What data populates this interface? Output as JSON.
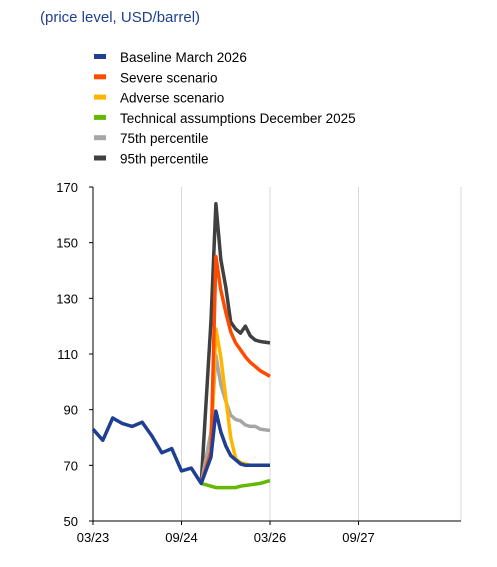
{
  "subtitle": "(price level, USD/barrel)",
  "chart_data": {
    "type": "line",
    "title": "",
    "subtitle": "(price level, USD/barrel)",
    "xlabel": "",
    "ylabel": "",
    "ylim": [
      50,
      170
    ],
    "yticks": [
      50,
      70,
      90,
      110,
      130,
      150,
      170
    ],
    "xticks": [
      "03/23",
      "09/24",
      "03/26",
      "09/27"
    ],
    "grid": "vertical lines at x ticks",
    "legend_position": "top-left",
    "series": [
      {
        "name": "Baseline March 2026",
        "color": "#1f3f93",
        "points": [
          [
            "03/23",
            83
          ],
          [
            "05/23",
            79
          ],
          [
            "07/23",
            87
          ],
          [
            "09/23",
            85
          ],
          [
            "11/23",
            84
          ],
          [
            "01/24",
            85.5
          ],
          [
            "03/24",
            80.5
          ],
          [
            "05/24",
            74.5
          ],
          [
            "07/24",
            76
          ],
          [
            "09/24",
            68
          ],
          [
            "11/24",
            69
          ],
          [
            "01/25",
            63.5
          ],
          [
            "03/25",
            73
          ],
          [
            "04/25",
            89.5
          ],
          [
            "05/25",
            82
          ],
          [
            "06/25",
            77
          ],
          [
            "07/25",
            73.5
          ],
          [
            "08/25",
            72
          ],
          [
            "09/25",
            70.5
          ],
          [
            "10/25",
            70
          ],
          [
            "11/25",
            70
          ],
          [
            "12/25",
            70
          ],
          [
            "01/26",
            70
          ],
          [
            "02/26",
            70
          ],
          [
            "03/26",
            70
          ]
        ]
      },
      {
        "name": "Severe scenario",
        "color": "#ff4b00",
        "points": [
          [
            "01/25",
            63.5
          ],
          [
            "03/25",
            75
          ],
          [
            "04/25",
            145
          ],
          [
            "05/25",
            133
          ],
          [
            "06/25",
            125
          ],
          [
            "07/25",
            118
          ],
          [
            "08/25",
            114
          ],
          [
            "09/25",
            111.5
          ],
          [
            "10/25",
            109
          ],
          [
            "11/25",
            107
          ],
          [
            "12/25",
            105.5
          ],
          [
            "01/26",
            104
          ],
          [
            "03/26",
            102
          ]
        ]
      },
      {
        "name": "Adverse scenario",
        "color": "#ffb400",
        "points": [
          [
            "01/25",
            63.5
          ],
          [
            "03/25",
            74
          ],
          [
            "04/25",
            119
          ],
          [
            "05/25",
            109
          ],
          [
            "06/25",
            94
          ],
          [
            "07/25",
            80
          ],
          [
            "08/25",
            72.5
          ],
          [
            "09/25",
            71
          ],
          [
            "10/25",
            70.5
          ],
          [
            "11/25",
            70
          ],
          [
            "12/25",
            70
          ],
          [
            "01/26",
            70
          ],
          [
            "03/26",
            70
          ]
        ]
      },
      {
        "name": "Technical assumptions December 2025",
        "color": "#65b800",
        "points": [
          [
            "01/25",
            63.5
          ],
          [
            "04/25",
            62
          ],
          [
            "06/25",
            62
          ],
          [
            "08/25",
            62
          ],
          [
            "09/25",
            62.5
          ],
          [
            "11/25",
            63
          ],
          [
            "01/26",
            63.5
          ],
          [
            "03/26",
            64.5
          ]
        ]
      },
      {
        "name": "75th percentile",
        "color": "#a6a6a6",
        "points": [
          [
            "01/25",
            63.5
          ],
          [
            "03/25",
            82
          ],
          [
            "04/25",
            109.5
          ],
          [
            "05/25",
            99
          ],
          [
            "06/25",
            93
          ],
          [
            "07/25",
            88
          ],
          [
            "08/25",
            86.5
          ],
          [
            "09/25",
            86
          ],
          [
            "10/25",
            84.5
          ],
          [
            "11/25",
            84
          ],
          [
            "12/25",
            84
          ],
          [
            "01/26",
            83
          ],
          [
            "03/26",
            82.5
          ]
        ]
      },
      {
        "name": "95th percentile",
        "color": "#404040",
        "points": [
          [
            "01/25",
            63.5
          ],
          [
            "03/25",
            122
          ],
          [
            "04/25",
            164
          ],
          [
            "05/25",
            144
          ],
          [
            "06/25",
            134
          ],
          [
            "07/25",
            121.5
          ],
          [
            "08/25",
            119
          ],
          [
            "09/25",
            117.5
          ],
          [
            "10/25",
            120
          ],
          [
            "11/25",
            116.5
          ],
          [
            "12/25",
            115
          ],
          [
            "01/26",
            114.5
          ],
          [
            "03/26",
            114
          ]
        ]
      }
    ]
  }
}
